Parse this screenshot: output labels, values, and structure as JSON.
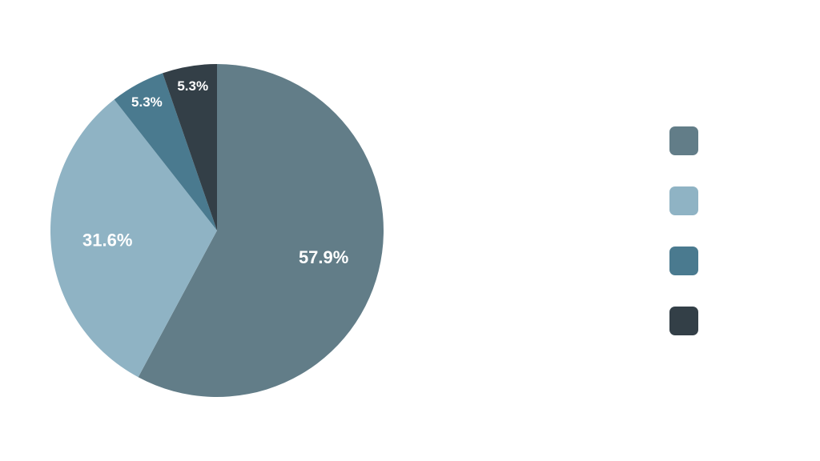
{
  "chart_data": {
    "type": "pie",
    "title": "",
    "legend_position": "right",
    "slices": [
      {
        "label": "",
        "value": 57.9,
        "display": "57.9%",
        "color": "#627d88"
      },
      {
        "label": "",
        "value": 31.6,
        "display": "31.6%",
        "color": "#8fb3c4"
      },
      {
        "label": "",
        "value": 5.3,
        "display": "5.3%",
        "color": "#4a7a8f"
      },
      {
        "label": "",
        "value": 5.3,
        "display": "5.3%",
        "color": "#333f47"
      }
    ]
  }
}
